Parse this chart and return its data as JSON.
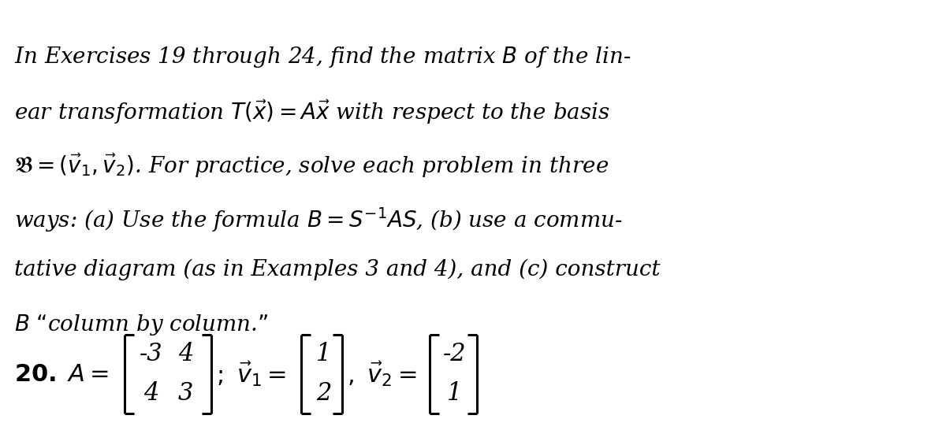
{
  "background_color": "#ffffff",
  "matrix_A": [
    [
      -3,
      4
    ],
    [
      4,
      3
    ]
  ],
  "vector_v1": [
    1,
    2
  ],
  "vector_v2": [
    -2,
    1
  ],
  "font_size_paragraph": 20,
  "font_size_exercise": 22,
  "text_color": "#000000",
  "paragraph_lines": [
    "In Exercises 19 through 24, find the matrix $B$ of the lin-",
    "ear transformation $T(\\vec{x}) = A\\vec{x}$ with respect to the basis",
    "$\\mathfrak{B} = (\\vec{v}_1, \\vec{v}_2)$. For practice, solve each problem in three",
    "ways: (a) Use the formula $B = S^{-1}AS$, (b) use a commu-",
    "tative diagram (as in Examples 3 and 4), and (c) construct",
    "$B$ “column by column.”"
  ]
}
